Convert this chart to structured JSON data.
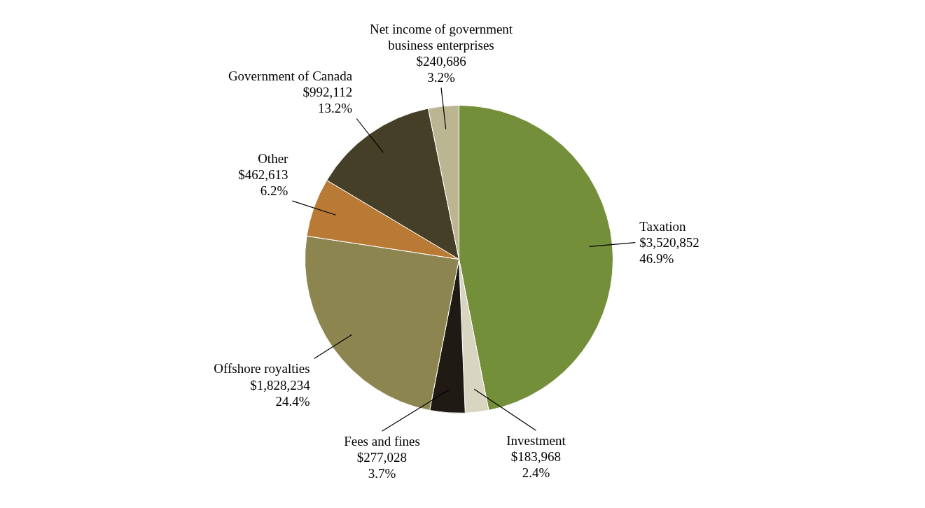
{
  "chart_data": {
    "type": "pie",
    "categories": [
      "Taxation",
      "Investment",
      "Fees and fines",
      "Offshore royalties",
      "Other",
      "Government of Canada",
      "Net income of government\nbusiness enterprises"
    ],
    "values": [
      3520852,
      183968,
      277028,
      1828234,
      462613,
      992112,
      240686
    ],
    "value_labels": [
      "$3,520,852\n46.9%",
      "$183,968\n2.4%",
      "$277,028\n3.7%",
      "$1,828,234\n24.4%",
      "$462,613\n6.2%",
      "$992,112\n13.2%",
      "$240,686\n3.2%"
    ],
    "colors": [
      "#748f3a",
      "#d8d5c0",
      "#1f1b14",
      "#8c8550",
      "#b87a35",
      "#463f28",
      "#bcb592"
    ],
    "legend": false
  }
}
